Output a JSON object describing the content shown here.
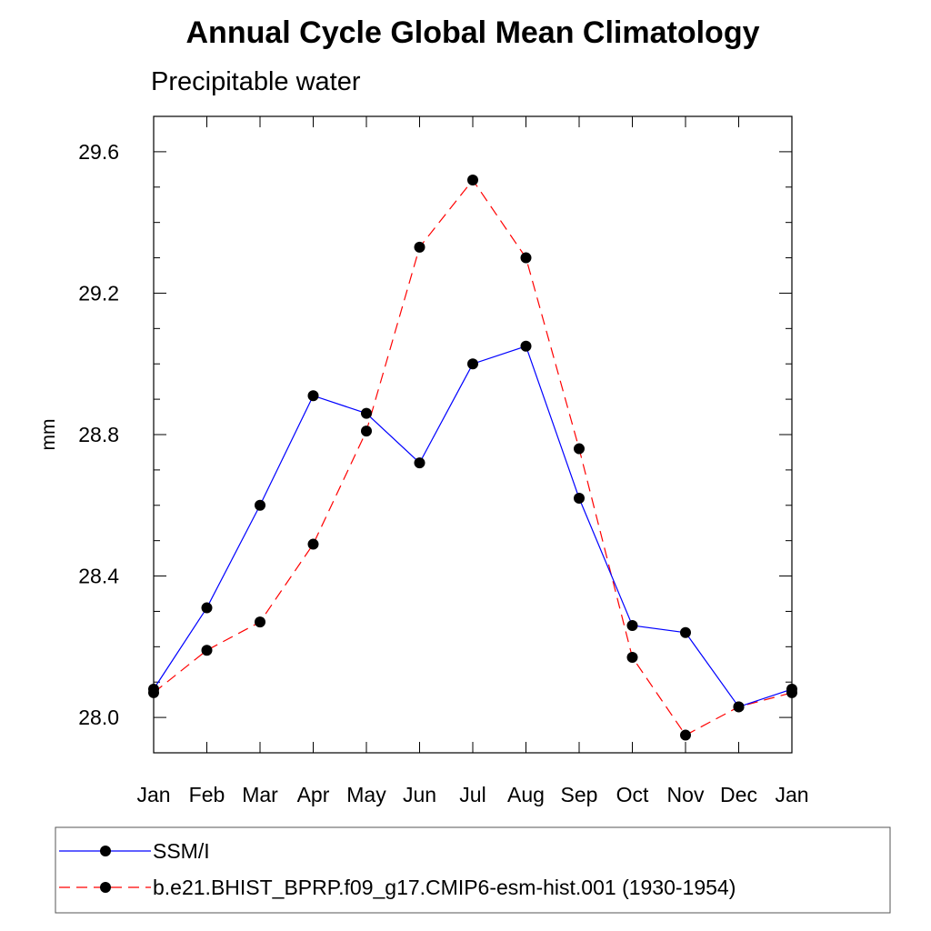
{
  "chart_data": {
    "type": "line",
    "title": "Annual Cycle Global Mean Climatology",
    "subtitle": "Precipitable water",
    "xlabel": "",
    "ylabel": "mm",
    "categories": [
      "Jan",
      "Feb",
      "Mar",
      "Apr",
      "May",
      "Jun",
      "Jul",
      "Aug",
      "Sep",
      "Oct",
      "Nov",
      "Dec",
      "Jan"
    ],
    "ylim": [
      27.9,
      29.7
    ],
    "yticks": [
      28.0,
      28.4,
      28.8,
      29.2,
      29.6
    ],
    "ytick_labels": [
      "28.0",
      "28.4",
      "28.8",
      "29.2",
      "29.6"
    ],
    "grid": false,
    "legend_position": "bottom",
    "series": [
      {
        "name": "SSM/I",
        "color": "#0000ff",
        "line_style": "solid",
        "marker": "filled-circle",
        "values": [
          28.08,
          28.31,
          28.6,
          28.91,
          28.86,
          28.72,
          29.0,
          29.05,
          28.62,
          28.26,
          28.24,
          28.03,
          28.08
        ]
      },
      {
        "name": "b.e21.BHIST_BPRP.f09_g17.CMIP6-esm-hist.001 (1930-1954)",
        "color": "#ff0000",
        "line_style": "dashed",
        "marker": "filled-circle",
        "values": [
          28.07,
          28.19,
          28.27,
          28.49,
          28.81,
          29.33,
          29.52,
          29.3,
          28.76,
          28.17,
          27.95,
          28.03,
          28.07
        ]
      }
    ]
  }
}
